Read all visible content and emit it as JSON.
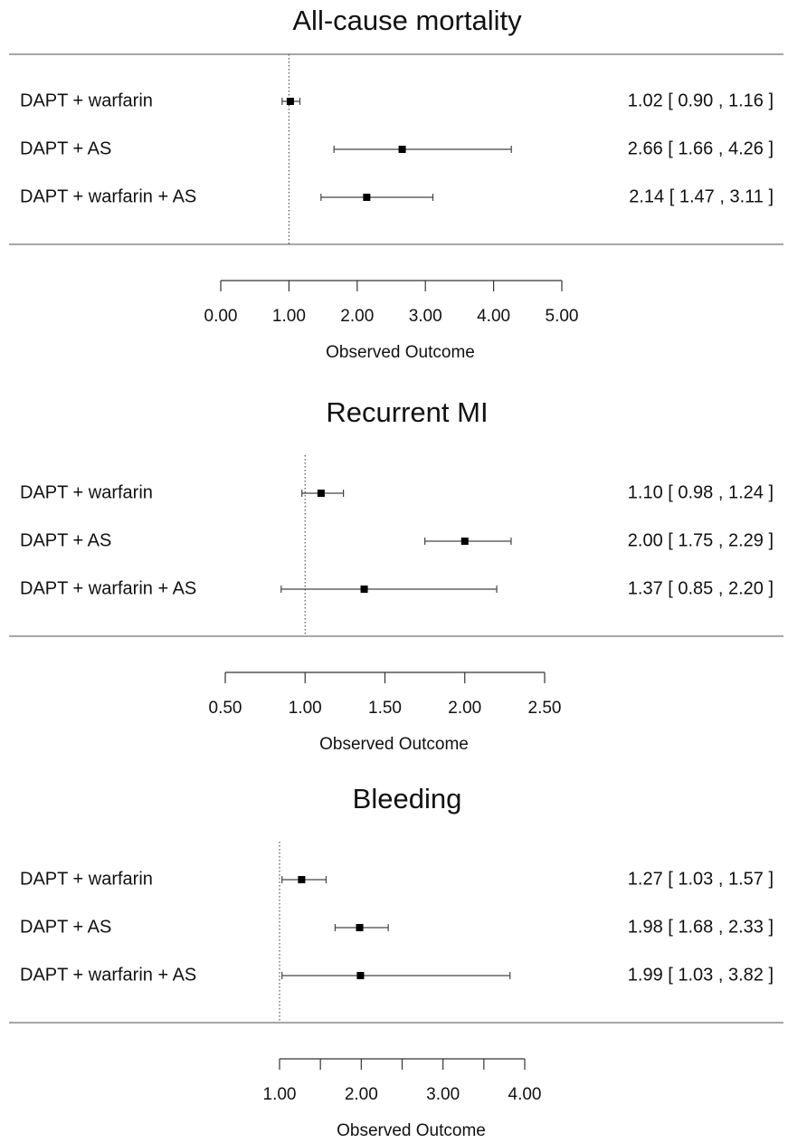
{
  "chart_data": [
    {
      "type": "forest",
      "title": "All-cause mortality",
      "xlabel": "Observed Outcome",
      "categories": [
        "DAPT + warfarin",
        "DAPT + AS",
        "DAPT + warfarin + AS"
      ],
      "values": [
        1.02,
        2.66,
        2.14
      ],
      "lower": [
        0.9,
        1.66,
        1.47
      ],
      "upper": [
        1.16,
        4.26,
        3.11
      ],
      "value_labels": [
        "1.02 [ 0.90 , 1.16 ]",
        "2.66 [ 1.66 , 4.26 ]",
        "2.14 [ 1.47 , 3.11 ]"
      ],
      "reference": 1,
      "xlim": [
        0,
        5
      ],
      "xticks": [
        {
          "value": 0,
          "label": "0.00"
        },
        {
          "value": 1,
          "label": "1.00"
        },
        {
          "value": 2,
          "label": "2.00"
        },
        {
          "value": 3,
          "label": "3.00"
        },
        {
          "value": 4,
          "label": "4.00"
        },
        {
          "value": 5,
          "label": "5.00"
        }
      ],
      "color": "#000000"
    },
    {
      "type": "forest",
      "title": "Recurrent MI",
      "xlabel": "Observed Outcome",
      "categories": [
        "DAPT + warfarin",
        "DAPT + AS",
        "DAPT + warfarin + AS"
      ],
      "values": [
        1.1,
        2.0,
        1.37
      ],
      "lower": [
        0.98,
        1.75,
        0.85
      ],
      "upper": [
        1.24,
        2.29,
        2.2
      ],
      "value_labels": [
        "1.10 [ 0.98 , 1.24 ]",
        "2.00 [ 1.75 , 2.29 ]",
        "1.37 [ 0.85 , 2.20 ]"
      ],
      "reference": 1,
      "xlim": [
        0.5,
        2.5
      ],
      "xticks": [
        {
          "value": 0.5,
          "label": "0.50"
        },
        {
          "value": 1,
          "label": "1.00"
        },
        {
          "value": 1.5,
          "label": "1.50"
        },
        {
          "value": 2,
          "label": "2.00"
        },
        {
          "value": 2.5,
          "label": "2.50"
        }
      ],
      "color": "#000000"
    },
    {
      "type": "forest",
      "title": "Bleeding",
      "xlabel": "Observed Outcome",
      "categories": [
        "DAPT + warfarin",
        "DAPT + AS",
        "DAPT + warfarin + AS"
      ],
      "values": [
        1.27,
        1.98,
        1.99
      ],
      "lower": [
        1.03,
        1.68,
        1.03
      ],
      "upper": [
        1.57,
        2.33,
        3.82
      ],
      "value_labels": [
        "1.27 [ 1.03 , 1.57 ]",
        "1.98 [ 1.68 , 2.33 ]",
        "1.99 [ 1.03 , 3.82 ]"
      ],
      "reference": 1,
      "xlim": [
        1,
        4
      ],
      "xticks": [
        {
          "value": 1,
          "label": "1.00"
        },
        {
          "value": 1.5,
          "label": null
        },
        {
          "value": 2,
          "label": "2.00"
        },
        {
          "value": 2.5,
          "label": null
        },
        {
          "value": 3,
          "label": "3.00"
        },
        {
          "value": 3.5,
          "label": null
        },
        {
          "value": 4,
          "label": "4.00"
        }
      ],
      "color": "#000000"
    }
  ]
}
